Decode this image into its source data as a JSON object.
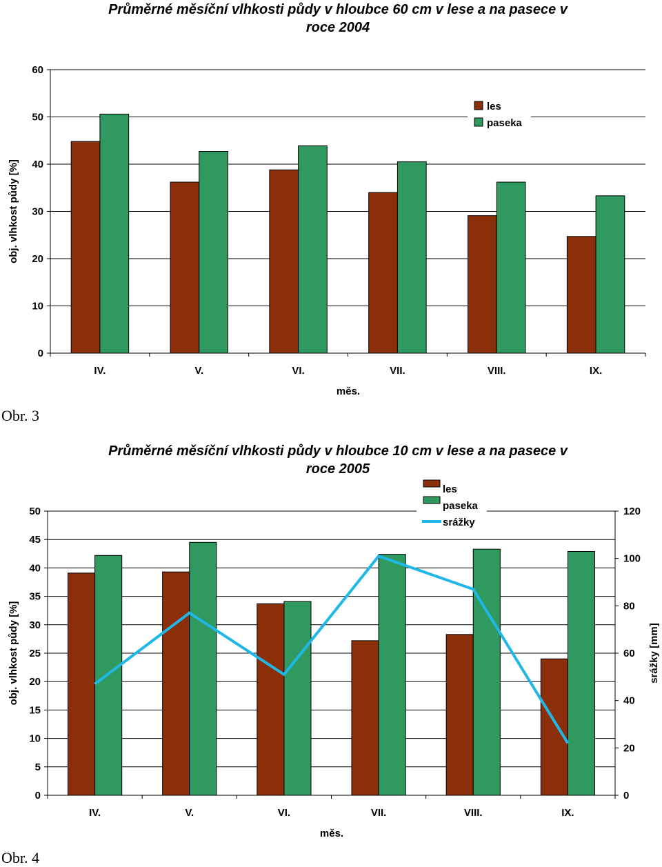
{
  "captions": [
    "Obr. 3",
    "Obr. 4"
  ],
  "colors": {
    "les": "#8B2E0A",
    "paseka": "#2F9960",
    "srazky": "#1FB8E6"
  },
  "chart_data": [
    {
      "type": "bar",
      "title_lines": [
        "Průměrné měsíční vlhkosti půdy v hloubce 60 cm v lese a na pasece v",
        "roce 2004"
      ],
      "xlabel": "měs.",
      "ylabel": "obj. vlhkost půdy [%]",
      "ylim": [
        0,
        60
      ],
      "yticks": [
        0,
        10,
        20,
        30,
        40,
        50,
        60
      ],
      "categories": [
        "IV.",
        "V.",
        "VI.",
        "VII.",
        "VIII.",
        "IX."
      ],
      "series": [
        {
          "name": "les",
          "values": [
            44.8,
            36.2,
            38.8,
            34.0,
            29.1,
            24.7
          ]
        },
        {
          "name": "paseka",
          "values": [
            50.6,
            42.7,
            43.9,
            40.5,
            36.2,
            33.3
          ]
        }
      ],
      "grid": true,
      "legend": "top-right"
    },
    {
      "type": "bar",
      "title_lines": [
        "Průměrné měsíční vlhkosti půdy v hloubce 10 cm v lese a na pasece v",
        "roce 2005"
      ],
      "xlabel": "měs.",
      "ylabel": "obj. vlhkost půdy [%]",
      "y2label": "srážky [mm]",
      "ylim": [
        0,
        50
      ],
      "yticks": [
        0,
        5,
        10,
        15,
        20,
        25,
        30,
        35,
        40,
        45,
        50
      ],
      "y2lim": [
        0,
        120
      ],
      "y2ticks": [
        0,
        20,
        40,
        60,
        80,
        100,
        120
      ],
      "categories": [
        "IV.",
        "V.",
        "VI.",
        "VII.",
        "VIII.",
        "IX."
      ],
      "series": [
        {
          "name": "les",
          "values": [
            39.1,
            39.3,
            33.7,
            27.2,
            28.3,
            24.0
          ]
        },
        {
          "name": "paseka",
          "values": [
            42.2,
            44.5,
            34.1,
            42.4,
            43.3,
            42.9
          ]
        }
      ],
      "line_series": {
        "name": "srážky",
        "axis": "y2",
        "values": [
          47,
          77,
          51,
          101,
          87,
          22
        ]
      },
      "grid": true,
      "legend": "top-right"
    }
  ]
}
